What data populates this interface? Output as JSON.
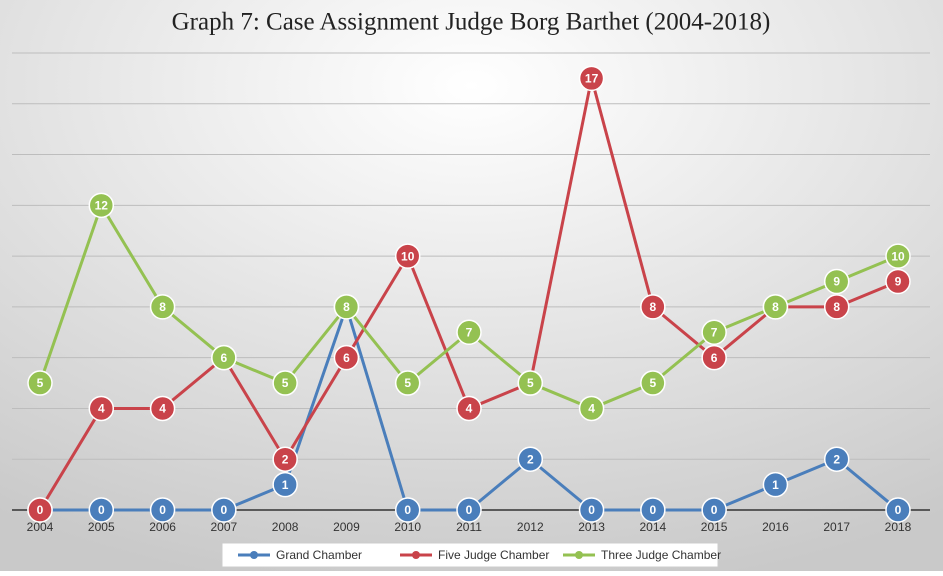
{
  "chart_data": {
    "type": "line",
    "title": "Graph 7: Case Assignment Judge Borg Barthet (2004-2018)",
    "categories": [
      "2004",
      "2005",
      "2006",
      "2007",
      "2008",
      "2009",
      "2010",
      "2011",
      "2012",
      "2013",
      "2014",
      "2015",
      "2016",
      "2017",
      "2018"
    ],
    "series": [
      {
        "name": "Grand Chamber",
        "color": "#4a7ebb",
        "values": [
          0,
          0,
          0,
          0,
          1,
          8,
          0,
          0,
          2,
          0,
          0,
          0,
          1,
          2,
          0
        ]
      },
      {
        "name": "Five Judge Chamber",
        "color": "#c9434a",
        "values": [
          0,
          4,
          4,
          6,
          2,
          6,
          10,
          4,
          5,
          17,
          8,
          6,
          8,
          8,
          9
        ]
      },
      {
        "name": "Three Judge Chamber",
        "color": "#94c152",
        "values": [
          5,
          12,
          8,
          6,
          5,
          8,
          5,
          7,
          5,
          4,
          5,
          7,
          8,
          9,
          10
        ]
      }
    ],
    "ylim": [
      0,
      18
    ],
    "yticks": [
      0,
      2,
      4,
      6,
      8,
      10,
      12,
      14,
      16,
      18
    ],
    "grid": true,
    "legend": "bottom"
  }
}
